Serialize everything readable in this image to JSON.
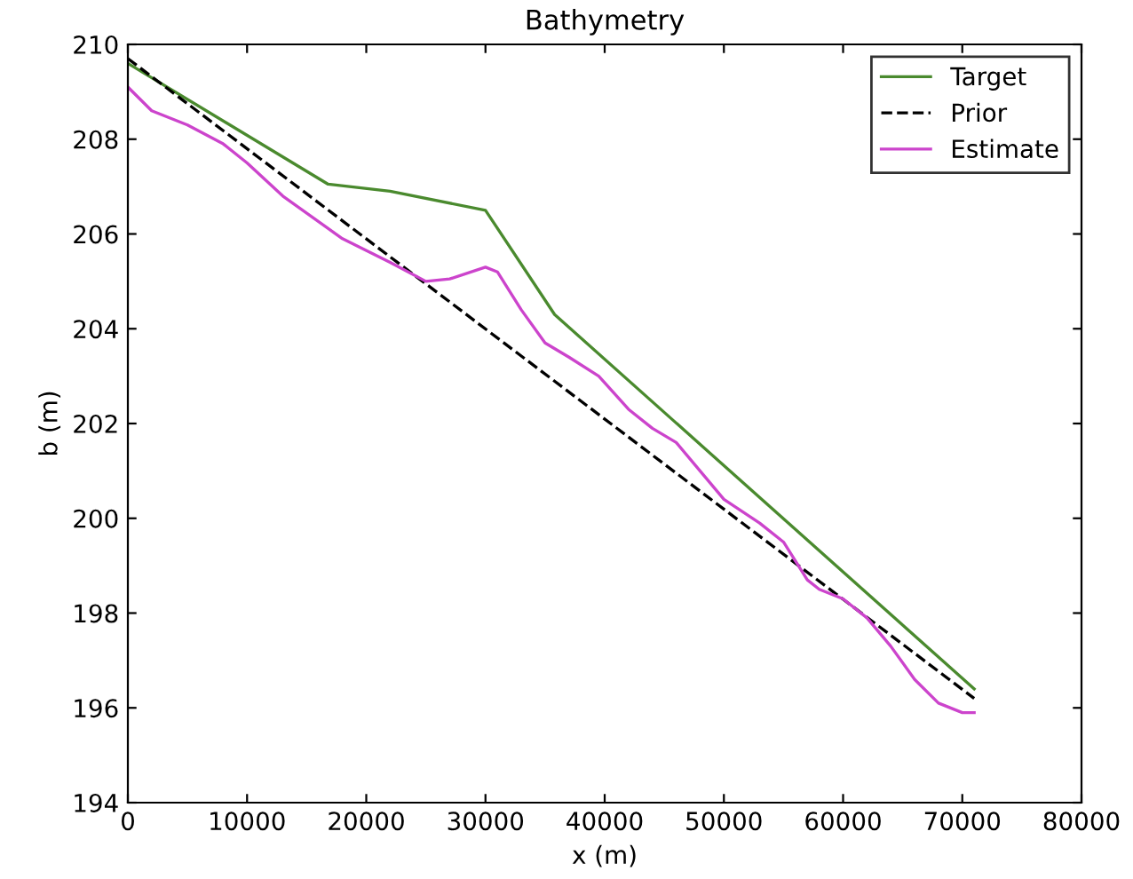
{
  "chart_data": {
    "type": "line",
    "title": "Bathymetry",
    "xlabel": "x (m)",
    "ylabel": "b (m)",
    "xlim": [
      0,
      80000
    ],
    "xticks": [
      0,
      10000,
      20000,
      30000,
      40000,
      50000,
      60000,
      70000,
      80000
    ],
    "ylim": [
      194,
      210
    ],
    "yticks": [
      194,
      196,
      198,
      200,
      202,
      204,
      206,
      208,
      210
    ],
    "grid": false,
    "legend": "top right",
    "series": [
      {
        "name": "Target",
        "color": "#4a8a2e",
        "line_style": "solid",
        "x": [
          0,
          16800,
          22000,
          30000,
          35800,
          71000
        ],
        "values": [
          209.6,
          207.05,
          206.9,
          206.5,
          204.3,
          196.4
        ]
      },
      {
        "name": "Prior",
        "color": "#000000",
        "line_style": "dashed",
        "x": [
          0,
          71000
        ],
        "values": [
          209.7,
          196.2
        ]
      },
      {
        "name": "Estimate",
        "color": "#cc44cc",
        "line_style": "solid",
        "x": [
          0,
          2000,
          5000,
          8000,
          10000,
          13000,
          18000,
          22000,
          25000,
          27000,
          30000,
          31000,
          33000,
          35000,
          37000,
          39500,
          42000,
          44000,
          46000,
          48000,
          50000,
          53000,
          55000,
          57000,
          58000,
          60000,
          62000,
          64000,
          66000,
          68000,
          70000,
          71000
        ],
        "values": [
          209.1,
          208.6,
          208.3,
          207.9,
          207.5,
          206.8,
          205.9,
          205.4,
          205.0,
          205.05,
          205.3,
          205.2,
          204.4,
          203.7,
          203.4,
          203.0,
          202.3,
          201.9,
          201.6,
          201.0,
          200.4,
          199.9,
          199.5,
          198.7,
          198.5,
          198.3,
          197.9,
          197.3,
          196.6,
          196.1,
          195.9,
          195.9
        ]
      }
    ]
  }
}
